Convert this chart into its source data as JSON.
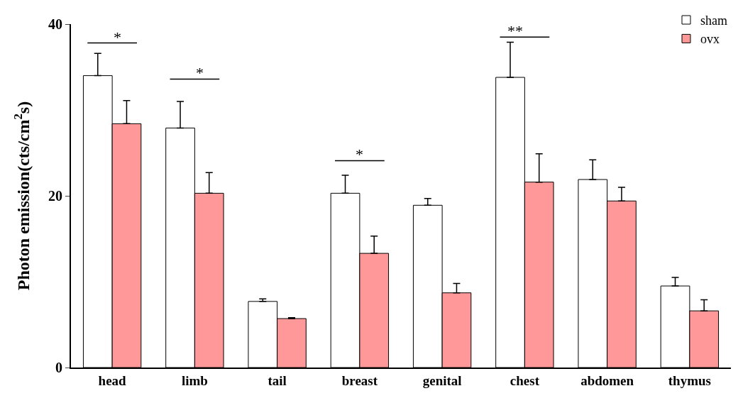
{
  "chart_data": {
    "type": "bar",
    "ylabel": "Photon emission(cts/cm$^{2}$s)",
    "categories": [
      "head",
      "limb",
      "tail",
      "breast",
      "genital",
      "chest",
      "abdomen",
      "thymus"
    ],
    "series": [
      {
        "name": "sham",
        "color": "#ffffff",
        "values": [
          34.0,
          27.9,
          7.7,
          20.3,
          18.9,
          33.8,
          21.9,
          9.5
        ],
        "errors": [
          [
            34.0,
            36.6
          ],
          [
            27.9,
            31.0
          ],
          [
            7.7,
            8.0
          ],
          [
            20.3,
            22.4
          ],
          [
            18.9,
            19.7
          ],
          [
            33.8,
            37.9
          ],
          [
            21.9,
            24.2
          ],
          [
            9.5,
            10.5
          ]
        ]
      },
      {
        "name": "ovx",
        "color": "#ff9999",
        "values": [
          28.4,
          20.3,
          5.7,
          13.3,
          8.7,
          21.6,
          19.4,
          6.6
        ],
        "errors": [
          [
            28.4,
            31.1
          ],
          [
            20.3,
            22.7
          ],
          [
            5.7,
            5.8
          ],
          [
            13.3,
            15.3
          ],
          [
            8.7,
            9.8
          ],
          [
            21.6,
            24.9
          ],
          [
            19.4,
            21.0
          ],
          [
            6.6,
            7.9
          ]
        ]
      }
    ],
    "ylim": [
      0,
      40
    ],
    "yticks": [
      0,
      20,
      40
    ],
    "grid": false,
    "legend": "top right",
    "annotations": [
      "*",
      "*",
      "*",
      "**"
    ]
  }
}
